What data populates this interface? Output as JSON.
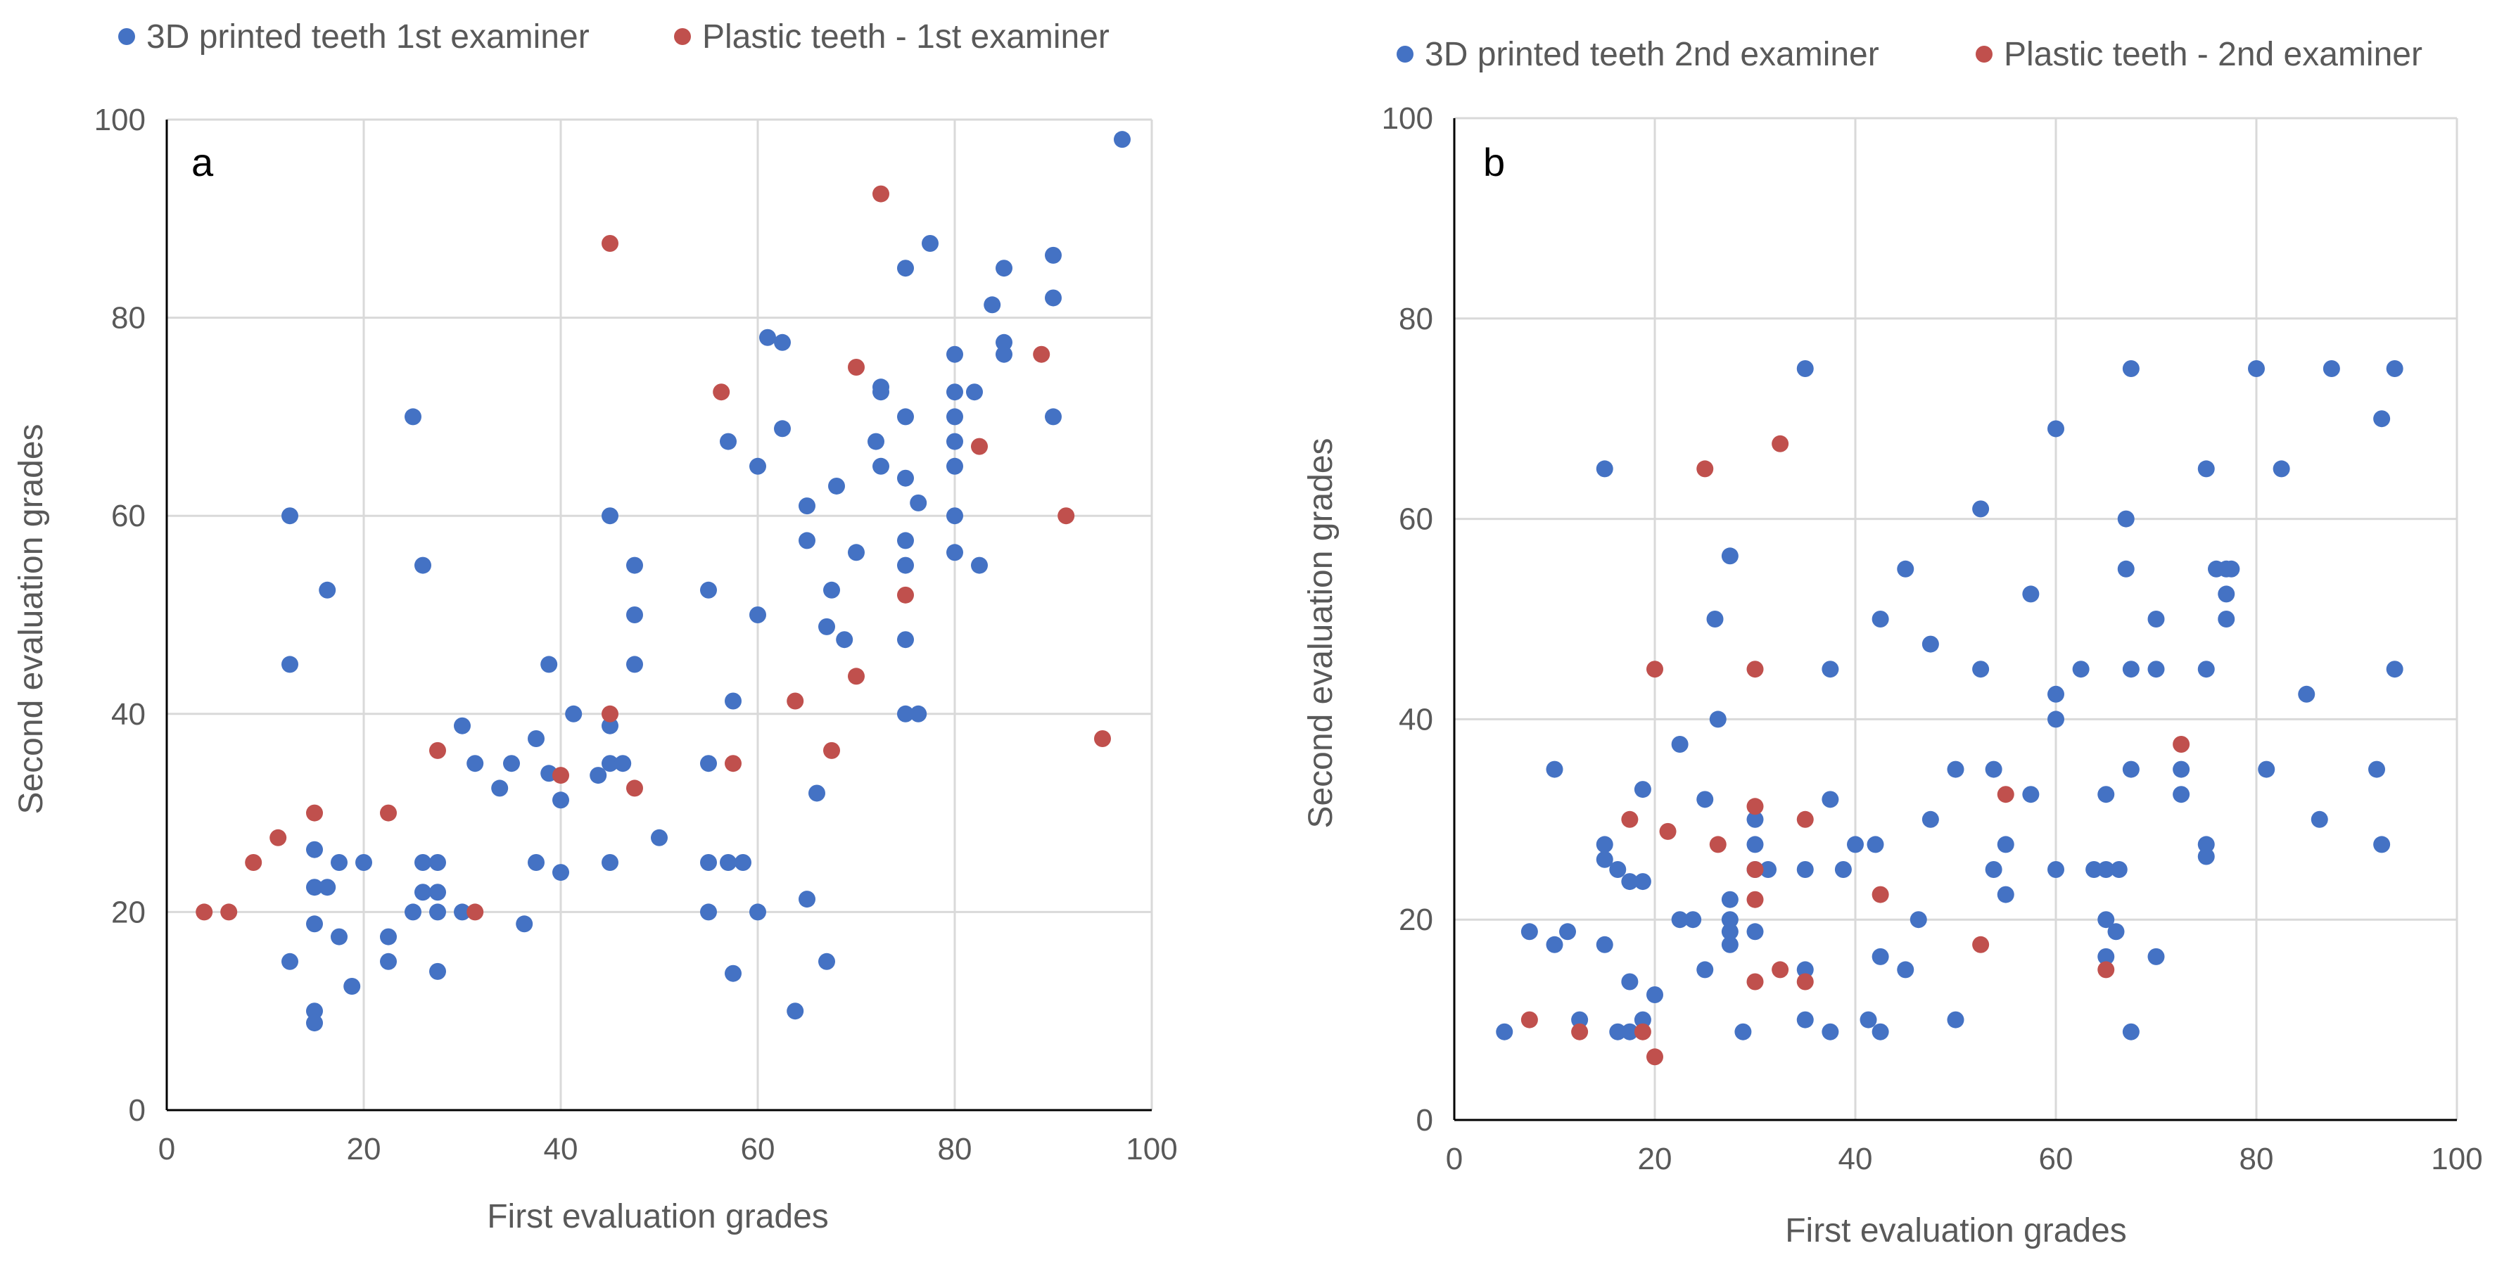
{
  "colors": {
    "blue": "#4472C4",
    "red": "#C0504D",
    "grid": "#D9D9D9",
    "text": "#595959"
  },
  "chart_data": [
    {
      "type": "scatter",
      "panel_label": "a",
      "xlabel": "First evaluation grades",
      "ylabel": "Second evaluation grades",
      "xlim": [
        0,
        100
      ],
      "ylim": [
        0,
        100
      ],
      "xticks": [
        0,
        20,
        40,
        60,
        80,
        100
      ],
      "yticks": [
        0,
        20,
        40,
        60,
        80,
        100
      ],
      "grid": true,
      "legend": "top",
      "series": [
        {
          "name": "3D printed teeth 1st examiner",
          "color": "#4472C4",
          "points": [
            [
              12.5,
              60
            ],
            [
              12.5,
              45
            ],
            [
              12.5,
              15
            ],
            [
              15,
              26.3
            ],
            [
              15,
              22.5
            ],
            [
              15,
              18.8
            ],
            [
              15,
              10
            ],
            [
              15,
              8.8
            ],
            [
              16.3,
              52.5
            ],
            [
              16.3,
              22.5
            ],
            [
              17.5,
              25
            ],
            [
              17.5,
              17.5
            ],
            [
              18.8,
              12.5
            ],
            [
              20,
              25
            ],
            [
              22.5,
              17.5
            ],
            [
              22.5,
              15
            ],
            [
              25,
              70
            ],
            [
              25,
              20
            ],
            [
              26,
              55
            ],
            [
              26,
              25
            ],
            [
              26,
              22
            ],
            [
              27.5,
              25
            ],
            [
              27.5,
              22
            ],
            [
              27.5,
              20
            ],
            [
              27.5,
              14
            ],
            [
              30,
              38.8
            ],
            [
              30,
              20
            ],
            [
              31.3,
              35
            ],
            [
              33.8,
              32.5
            ],
            [
              35,
              35
            ],
            [
              36.3,
              18.8
            ],
            [
              37.5,
              37.5
            ],
            [
              37.5,
              25
            ],
            [
              38.8,
              45
            ],
            [
              38.8,
              34
            ],
            [
              40,
              31.3
            ],
            [
              40,
              24
            ],
            [
              41.3,
              40
            ],
            [
              43.8,
              33.8
            ],
            [
              45,
              60
            ],
            [
              45,
              38.8
            ],
            [
              45,
              35
            ],
            [
              45,
              25
            ],
            [
              46.3,
              35
            ],
            [
              47.5,
              55
            ],
            [
              47.5,
              50
            ],
            [
              47.5,
              45
            ],
            [
              50,
              27.5
            ],
            [
              55,
              52.5
            ],
            [
              55,
              35
            ],
            [
              55,
              25
            ],
            [
              55,
              20
            ],
            [
              57,
              67.5
            ],
            [
              57,
              25
            ],
            [
              57.5,
              41.3
            ],
            [
              57.5,
              13.8
            ],
            [
              58.5,
              25
            ],
            [
              60,
              65
            ],
            [
              60,
              50
            ],
            [
              60,
              20
            ],
            [
              61,
              78
            ],
            [
              62.5,
              77.5
            ],
            [
              62.5,
              68.8
            ],
            [
              63.8,
              10
            ],
            [
              65,
              61
            ],
            [
              65,
              57.5
            ],
            [
              65,
              21.3
            ],
            [
              66,
              32
            ],
            [
              67,
              48.8
            ],
            [
              67,
              15
            ],
            [
              67.5,
              52.5
            ],
            [
              68,
              63
            ],
            [
              68.8,
              47.5
            ],
            [
              70,
              56.3
            ],
            [
              72,
              67.5
            ],
            [
              72.5,
              73
            ],
            [
              72.5,
              72.5
            ],
            [
              72.5,
              65
            ],
            [
              75,
              85
            ],
            [
              75,
              70
            ],
            [
              75,
              63.8
            ],
            [
              75,
              57.5
            ],
            [
              75,
              55
            ],
            [
              75,
              47.5
            ],
            [
              75,
              40
            ],
            [
              76.3,
              61.3
            ],
            [
              76.3,
              40
            ],
            [
              77.5,
              87.5
            ],
            [
              80,
              76.3
            ],
            [
              80,
              72.5
            ],
            [
              80,
              70
            ],
            [
              80,
              67.5
            ],
            [
              80,
              65
            ],
            [
              80,
              60
            ],
            [
              80,
              56.3
            ],
            [
              82,
              72.5
            ],
            [
              82.5,
              55
            ],
            [
              83.8,
              81.3
            ],
            [
              85,
              85
            ],
            [
              85,
              77.5
            ],
            [
              85,
              76.3
            ],
            [
              90,
              86.3
            ],
            [
              90,
              82
            ],
            [
              90,
              70
            ],
            [
              97,
              98
            ]
          ]
        },
        {
          "name": "Plastic teeth - 1st examiner",
          "color": "#C0504D",
          "points": [
            [
              3.8,
              20
            ],
            [
              6.3,
              20
            ],
            [
              8.8,
              25
            ],
            [
              11.3,
              27.5
            ],
            [
              15,
              30
            ],
            [
              22.5,
              30
            ],
            [
              27.5,
              36.3
            ],
            [
              31.3,
              20
            ],
            [
              40,
              33.8
            ],
            [
              45,
              87.5
            ],
            [
              45,
              40
            ],
            [
              47.5,
              32.5
            ],
            [
              56.3,
              72.5
            ],
            [
              57.5,
              35
            ],
            [
              63.8,
              41.3
            ],
            [
              67.5,
              36.3
            ],
            [
              70,
              75
            ],
            [
              70,
              43.8
            ],
            [
              72.5,
              92.5
            ],
            [
              75,
              52
            ],
            [
              82.5,
              67
            ],
            [
              88.8,
              76.3
            ],
            [
              91.3,
              60
            ],
            [
              95,
              37.5
            ]
          ]
        }
      ]
    },
    {
      "type": "scatter",
      "panel_label": "b",
      "xlabel": "First evaluation grades",
      "ylabel": "Second evaluation grades",
      "xlim": [
        0,
        100
      ],
      "ylim": [
        0,
        100
      ],
      "xticks": [
        0,
        20,
        40,
        60,
        80,
        100
      ],
      "yticks": [
        0,
        20,
        40,
        60,
        80,
        100
      ],
      "grid": true,
      "legend": "top",
      "series": [
        {
          "name": "3D printed teeth 2nd examiner",
          "color": "#4472C4",
          "points": [
            [
              5,
              8.8
            ],
            [
              7.5,
              18.8
            ],
            [
              10,
              35
            ],
            [
              10,
              17.5
            ],
            [
              11.3,
              18.8
            ],
            [
              12.5,
              10
            ],
            [
              15,
              65
            ],
            [
              15,
              27.5
            ],
            [
              15,
              26
            ],
            [
              15,
              17.5
            ],
            [
              16.3,
              25
            ],
            [
              16.3,
              8.8
            ],
            [
              17.5,
              23.8
            ],
            [
              17.5,
              13.8
            ],
            [
              17.5,
              8.8
            ],
            [
              18.8,
              33
            ],
            [
              18.8,
              23.8
            ],
            [
              18.8,
              10
            ],
            [
              20,
              12.5
            ],
            [
              22.5,
              37.5
            ],
            [
              22.5,
              20
            ],
            [
              23.8,
              20
            ],
            [
              25,
              32
            ],
            [
              25,
              15
            ],
            [
              26,
              50
            ],
            [
              26.3,
              40
            ],
            [
              27.5,
              56.3
            ],
            [
              27.5,
              22
            ],
            [
              27.5,
              20
            ],
            [
              27.5,
              18.8
            ],
            [
              27.5,
              17.5
            ],
            [
              28.8,
              8.8
            ],
            [
              30,
              30
            ],
            [
              30,
              27.5
            ],
            [
              30,
              25
            ],
            [
              30,
              18.8
            ],
            [
              31.3,
              25
            ],
            [
              35,
              75
            ],
            [
              35,
              25
            ],
            [
              35,
              15
            ],
            [
              35,
              10
            ],
            [
              37.5,
              45
            ],
            [
              37.5,
              32
            ],
            [
              37.5,
              8.8
            ],
            [
              38.8,
              25
            ],
            [
              40,
              27.5
            ],
            [
              41.3,
              10
            ],
            [
              42,
              27.5
            ],
            [
              42.5,
              50
            ],
            [
              42.5,
              16.3
            ],
            [
              42.5,
              8.8
            ],
            [
              45,
              55
            ],
            [
              45,
              15
            ],
            [
              46.3,
              20
            ],
            [
              47.5,
              47.5
            ],
            [
              47.5,
              30
            ],
            [
              50,
              35
            ],
            [
              50,
              10
            ],
            [
              52.5,
              61
            ],
            [
              52.5,
              45
            ],
            [
              53.8,
              35
            ],
            [
              53.8,
              25
            ],
            [
              55,
              27.5
            ],
            [
              55,
              22.5
            ],
            [
              57.5,
              52.5
            ],
            [
              57.5,
              32.5
            ],
            [
              60,
              69
            ],
            [
              60,
              42.5
            ],
            [
              60,
              40
            ],
            [
              60,
              25
            ],
            [
              62.5,
              45
            ],
            [
              63.8,
              25
            ],
            [
              65,
              32.5
            ],
            [
              65,
              25
            ],
            [
              65,
              20
            ],
            [
              65,
              16.3
            ],
            [
              66,
              18.8
            ],
            [
              66.3,
              25
            ],
            [
              67,
              60
            ],
            [
              67,
              55
            ],
            [
              67.5,
              75
            ],
            [
              67.5,
              45
            ],
            [
              67.5,
              35
            ],
            [
              67.5,
              8.8
            ],
            [
              70,
              50
            ],
            [
              70,
              45
            ],
            [
              70,
              16.3
            ],
            [
              72.5,
              35
            ],
            [
              72.5,
              32.5
            ],
            [
              75,
              65
            ],
            [
              75,
              45
            ],
            [
              75,
              27.5
            ],
            [
              75,
              26.3
            ],
            [
              76,
              55
            ],
            [
              77,
              55
            ],
            [
              77,
              52.5
            ],
            [
              77,
              50
            ],
            [
              77.5,
              55
            ],
            [
              80,
              75
            ],
            [
              81,
              35
            ],
            [
              82.5,
              65
            ],
            [
              85,
              42.5
            ],
            [
              86.3,
              30
            ],
            [
              87.5,
              75
            ],
            [
              92,
              35
            ],
            [
              92.5,
              70
            ],
            [
              92.5,
              27.5
            ],
            [
              93.8,
              75
            ],
            [
              93.8,
              45
            ]
          ]
        },
        {
          "name": "Plastic teeth - 2nd examiner",
          "color": "#C0504D",
          "points": [
            [
              7.5,
              10
            ],
            [
              12.5,
              8.8
            ],
            [
              17.5,
              30
            ],
            [
              18.8,
              8.8
            ],
            [
              20,
              45
            ],
            [
              20,
              6.3
            ],
            [
              21.3,
              28.8
            ],
            [
              25,
              65
            ],
            [
              26.3,
              27.5
            ],
            [
              30,
              45
            ],
            [
              30,
              31.3
            ],
            [
              30,
              25
            ],
            [
              30,
              22
            ],
            [
              30,
              13.8
            ],
            [
              32.5,
              67.5
            ],
            [
              32.5,
              15
            ],
            [
              35,
              30
            ],
            [
              35,
              13.8
            ],
            [
              42.5,
              22.5
            ],
            [
              52.5,
              17.5
            ],
            [
              55,
              32.5
            ],
            [
              65,
              15
            ],
            [
              72.5,
              37.5
            ]
          ]
        }
      ]
    }
  ]
}
